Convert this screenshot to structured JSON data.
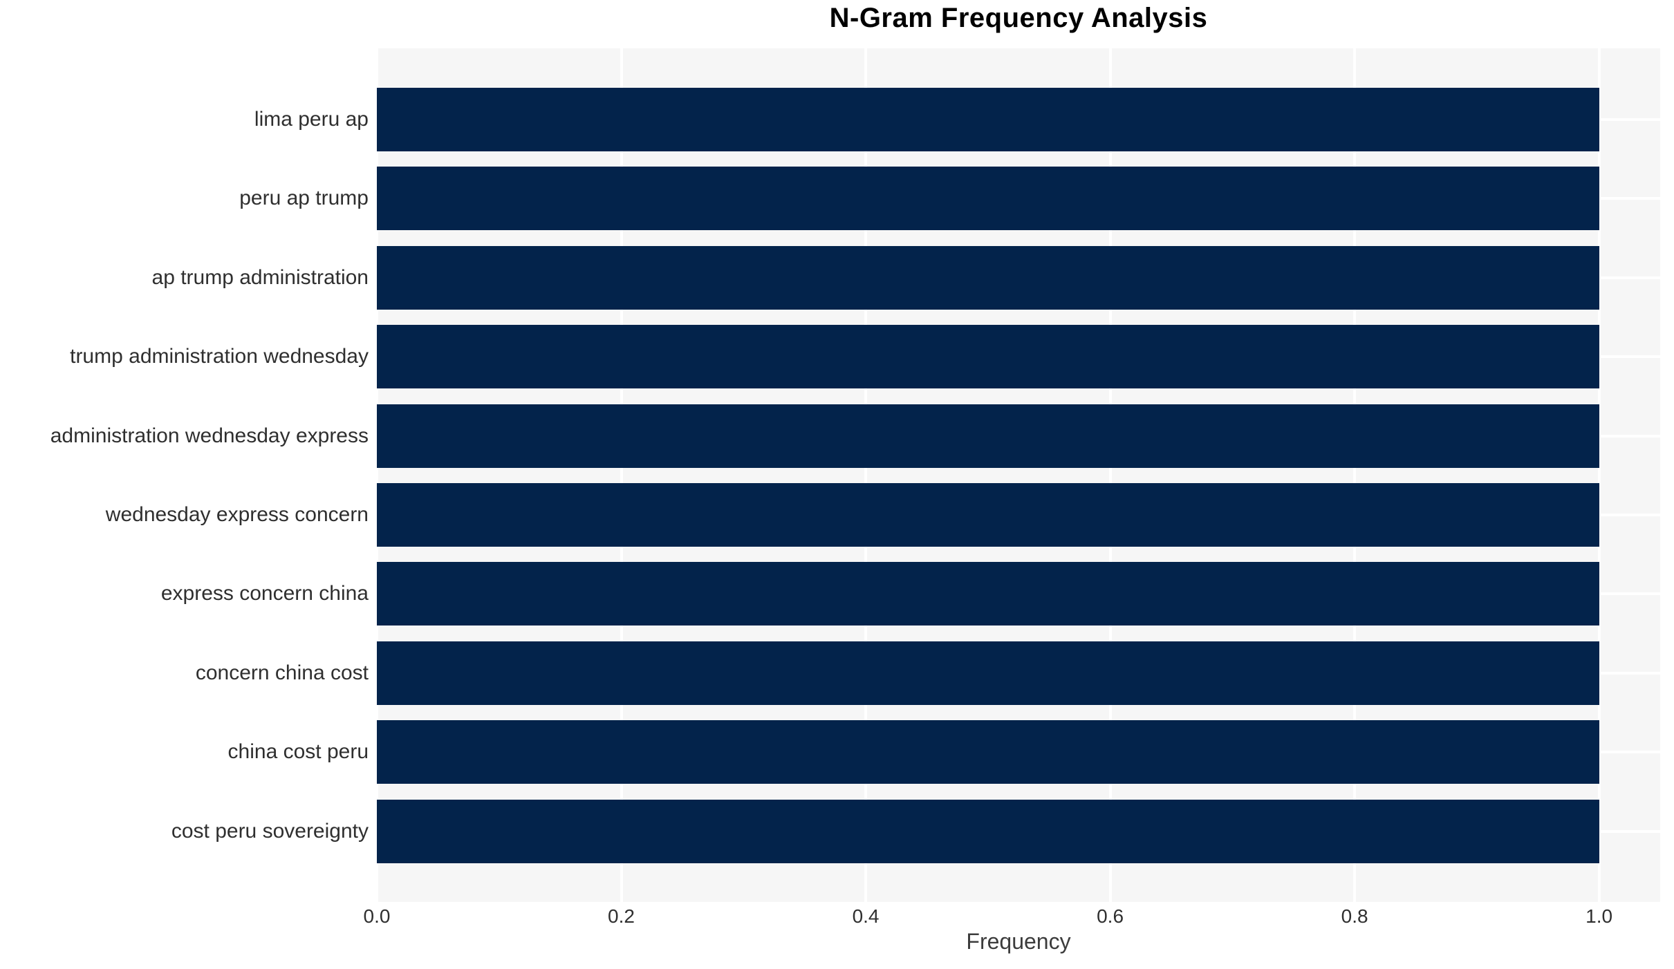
{
  "title": "N-Gram Frequency Analysis",
  "chart_data": {
    "type": "bar",
    "orientation": "horizontal",
    "title": "N-Gram Frequency Analysis",
    "xlabel": "Frequency",
    "ylabel": "",
    "categories": [
      "lima peru ap",
      "peru ap trump",
      "ap trump administration",
      "trump administration wednesday",
      "administration wednesday express",
      "wednesday express concern",
      "express concern china",
      "concern china cost",
      "china cost peru",
      "cost peru sovereignty"
    ],
    "values": [
      1.0,
      1.0,
      1.0,
      1.0,
      1.0,
      1.0,
      1.0,
      1.0,
      1.0,
      1.0
    ],
    "x_ticks": [
      0.0,
      0.2,
      0.4,
      0.6,
      0.8,
      1.0
    ],
    "x_tick_labels": [
      "0.0",
      "0.2",
      "0.4",
      "0.6",
      "0.8",
      "1.0"
    ],
    "xlim": [
      0,
      1.05
    ],
    "grid": true,
    "legend_position": "none",
    "bar_color": "#03234B",
    "plot_bg": "#f6f6f6",
    "grid_color": "#ffffff",
    "text_color": "#2f2f2f",
    "title_color": "#000000"
  }
}
